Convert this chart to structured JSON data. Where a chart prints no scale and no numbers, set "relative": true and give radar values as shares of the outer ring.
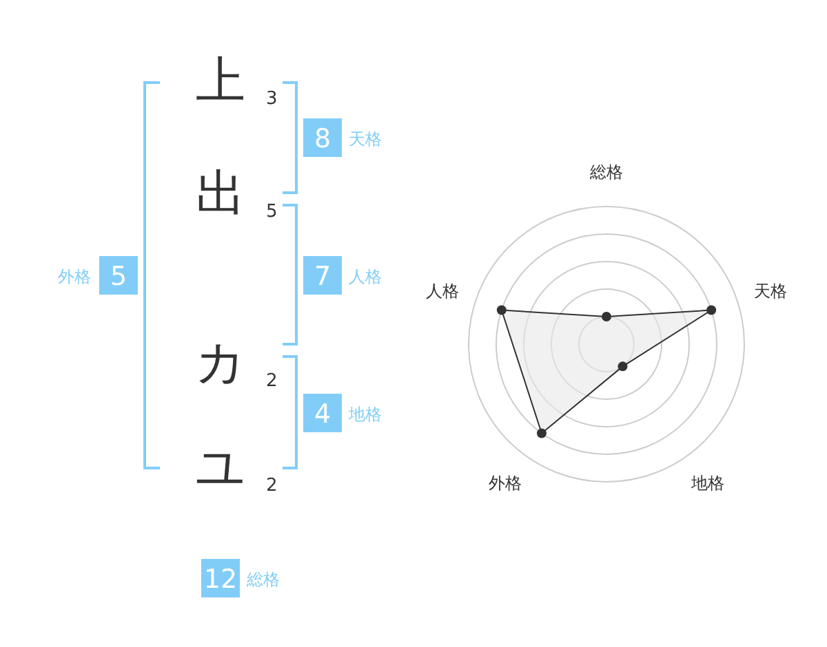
{
  "chart_data": [
    {
      "type": "other",
      "categories": [
        "上",
        "出",
        "カ",
        "ユ"
      ],
      "values": [
        3,
        5,
        2,
        2
      ],
      "data_labels": true
    },
    {
      "type": "other",
      "categories": [
        "天格",
        "人格",
        "地格",
        "外格",
        "総格"
      ],
      "series": [
        {
          "color": "#82cdf8",
          "values": [
            8,
            7,
            4,
            5,
            12
          ]
        }
      ],
      "data_labels": true
    },
    {
      "type": "radar",
      "categories": [
        "総格",
        "天格",
        "地格",
        "外格",
        "人格"
      ],
      "relative": true,
      "series": [
        {
          "color": "#333333",
          "values": [
            0.2,
            0.8,
            0.2,
            0.8,
            0.8
          ]
        }
      ],
      "marker": "circle",
      "grid": true
    }
  ]
}
